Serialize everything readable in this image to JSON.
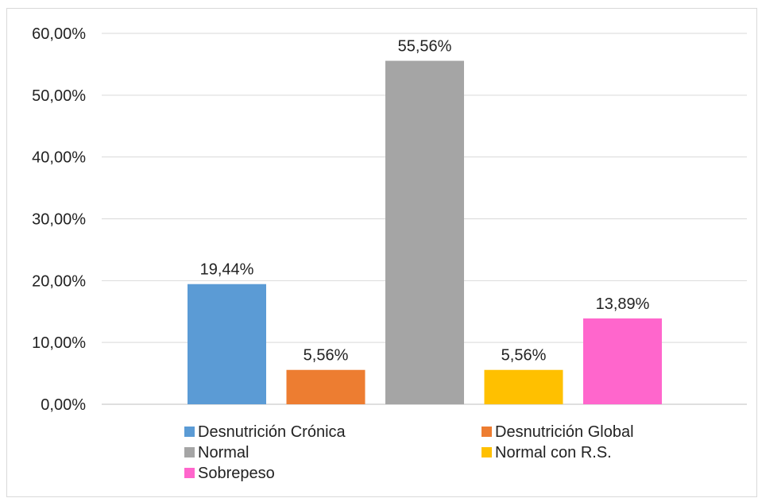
{
  "chart_data": {
    "type": "bar",
    "title": "",
    "xlabel": "",
    "ylabel": "",
    "ylim": [
      0,
      60
    ],
    "yticks": [
      0,
      10,
      20,
      30,
      40,
      50,
      60
    ],
    "ytick_labels": [
      "0,00%",
      "10,00%",
      "20,00%",
      "30,00%",
      "40,00%",
      "50,00%",
      "60,00%"
    ],
    "grid": true,
    "legend_position": "bottom",
    "series": [
      {
        "name": "Desnutrición Crónica",
        "value": 19.44,
        "label": "19,44%",
        "color": "#5b9bd5"
      },
      {
        "name": "Desnutrición Global",
        "value": 5.56,
        "label": "5,56%",
        "color": "#ed7d31"
      },
      {
        "name": "Normal",
        "value": 55.56,
        "label": "55,56%",
        "color": "#a5a5a5"
      },
      {
        "name": "Normal con R.S.",
        "value": 5.56,
        "label": "5,56%",
        "color": "#ffc000"
      },
      {
        "name": "Sobrepeso",
        "value": 13.89,
        "label": "13,89%",
        "color": "#ff66cc"
      }
    ]
  }
}
